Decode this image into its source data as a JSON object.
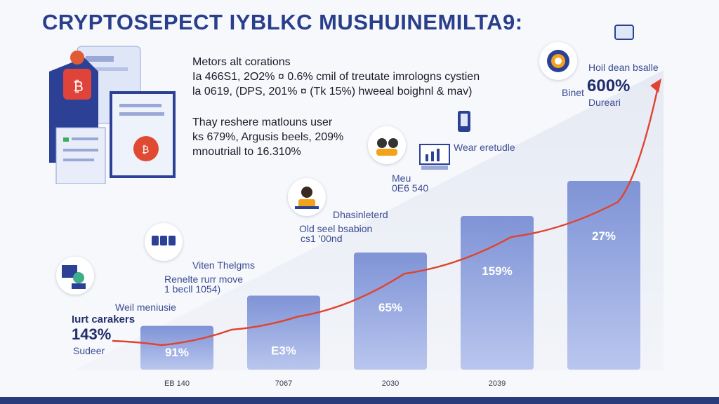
{
  "title": "CRYPTOSEPECT IYBLKC MUSHUINEMILTA9:",
  "info_block_1": {
    "heading": "Metors alt corations",
    "line1": "Ia 466S1, 2O2% ¤ 0.6% cmil of treutate imrologns cystien",
    "line2": "la 0619, (DPS, 201% ¤ (Tk 15%) hweeal boighnl & mav)"
  },
  "info_block_2": {
    "line1": "Thay reshere matlouns user",
    "line2": "ks 679%, Argusis beels, 209%",
    "line3": "mnoutriall to 16.310%"
  },
  "annotations": {
    "a1_l1": "Hoil dean bsalle",
    "a1_big": "600%",
    "a1_l2": "Binet",
    "a1_l3": "Dureari",
    "a2": "Wear eretudle",
    "a3_l1": "Meu",
    "a3_l2": "0E6 540",
    "a4_l1": "Dhasinleterd",
    "a4_l2": "Old seel bsabion",
    "a4_l3": "cs1 '00nd",
    "a5_l1": "Viten Thelgms",
    "a5_l2": "Renelte rurr move",
    "a5_l3": "1 becll 1054)",
    "a6": "Weil meniusie",
    "a7_l1": "Iurt carakers",
    "a7_big": "143%",
    "a7_l2": "Sudeer"
  },
  "chart_data": {
    "type": "bar",
    "categories": [
      "EB 140",
      "7067",
      "2030",
      "2039",
      ""
    ],
    "series": [
      {
        "values": [
          9,
          28,
          55,
          78,
          100
        ]
      }
    ],
    "data_labels": [
      "91%",
      "E3%",
      "65%",
      "159%",
      "27%"
    ],
    "trend_line": true,
    "ylim": [
      0,
      100
    ],
    "grid": false,
    "colors": {
      "bar_top": "#7f93d6",
      "bar_bottom": "#b9c6ee",
      "trend": "#e0432f",
      "band": "#2b3c7d"
    }
  }
}
